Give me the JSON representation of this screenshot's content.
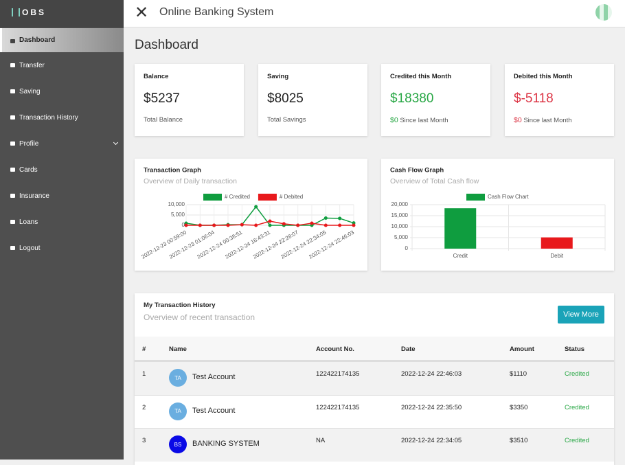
{
  "sidebar": {
    "logo": "OBS",
    "menu": [
      "Dashboard",
      "Transfer",
      "Saving",
      "Transaction History",
      "Profile",
      "Cards",
      "Insurance",
      "Loans",
      "Logout"
    ]
  },
  "header": {
    "title": "Online Banking System"
  },
  "page_title": "Dashboard",
  "cards": [
    {
      "title": "Balance",
      "value": "$5237",
      "subtitle": "Total Balance"
    },
    {
      "title": "Saving",
      "value": "$8025",
      "subtitle": "Total Savings"
    },
    {
      "title": "Credited this Month",
      "value": "$18380",
      "change": "$0",
      "subtitle": "Since last Month"
    },
    {
      "title": "Debited this Month",
      "value": "$-5118",
      "change": "$0",
      "subtitle": "Since last Month"
    }
  ],
  "chart_data": [
    {
      "type": "line",
      "title": "Transaction Graph",
      "subtitle": "Overview of Daily transaction",
      "categories": [
        "2022-12-23 00:59:00",
        null,
        "2022-12-23 01:06:04",
        null,
        "2022-12-24 00:38:51",
        null,
        "2022-12-24 16:43:31",
        null,
        "2022-12-24 22:28:07",
        null,
        "2022-12-24 22:34:05",
        null,
        "2022-12-24 22:46:03"
      ],
      "series": [
        {
          "name": "# Credited",
          "color": "#0f9d3f",
          "values": [
            1000,
            0,
            0,
            300,
            300,
            9000,
            0,
            0,
            0,
            0,
            3510,
            3350,
            1110
          ]
        },
        {
          "name": "# Debited",
          "color": "#e8191c",
          "values": [
            0,
            0,
            0,
            0,
            300,
            0,
            2000,
            700,
            0,
            1000,
            0,
            0,
            0
          ]
        }
      ],
      "ylim": [
        0,
        10000
      ],
      "yticks": [
        0,
        {
          "value": 5000,
          "label": "5,000"
        },
        {
          "value": 10000,
          "label": "10,000"
        }
      ],
      "grid": true,
      "legend": "top"
    },
    {
      "type": "bar",
      "title": "Cash Flow Graph",
      "subtitle": "Overview of Total Cash flow",
      "categories": [
        "Credit",
        "Debit"
      ],
      "series": [
        {
          "name": "Cash Flow Chart",
          "color": "#0f9d3f",
          "colors": [
            "#0f9d3f",
            "#e8191c"
          ],
          "values": [
            18380,
            5118
          ]
        }
      ],
      "ylim": [
        0,
        20000
      ],
      "yticks": [
        0,
        {
          "value": 5000,
          "label": "5,000"
        },
        {
          "value": 10000,
          "label": "10,000"
        },
        {
          "value": 15000,
          "label": "15,000"
        },
        {
          "value": 20000,
          "label": "20,000"
        }
      ],
      "grid": true,
      "legend": "top"
    }
  ],
  "history": {
    "title": "My Transaction History",
    "subtitle": "Overview of recent transaction",
    "button": "View More",
    "columns": [
      "#",
      "Name",
      "Account No.",
      "Date",
      "Amount",
      "Status"
    ],
    "rows": [
      {
        "index": "1",
        "initials": "TA",
        "name": "Test Account",
        "account": "122422174135",
        "date": "2022-12-24 22:46:03",
        "amount": "$1110",
        "status": "Credited"
      },
      {
        "index": "2",
        "initials": "TA",
        "name": "Test Account",
        "account": "122422174135",
        "date": "2022-12-24 22:35:50",
        "amount": "$3350",
        "status": "Credited"
      },
      {
        "index": "3",
        "initials": "BS",
        "name": "BANKING SYSTEM",
        "account": "NA",
        "date": "2022-12-24 22:34:05",
        "amount": "$3510",
        "status": "Credited"
      }
    ]
  }
}
